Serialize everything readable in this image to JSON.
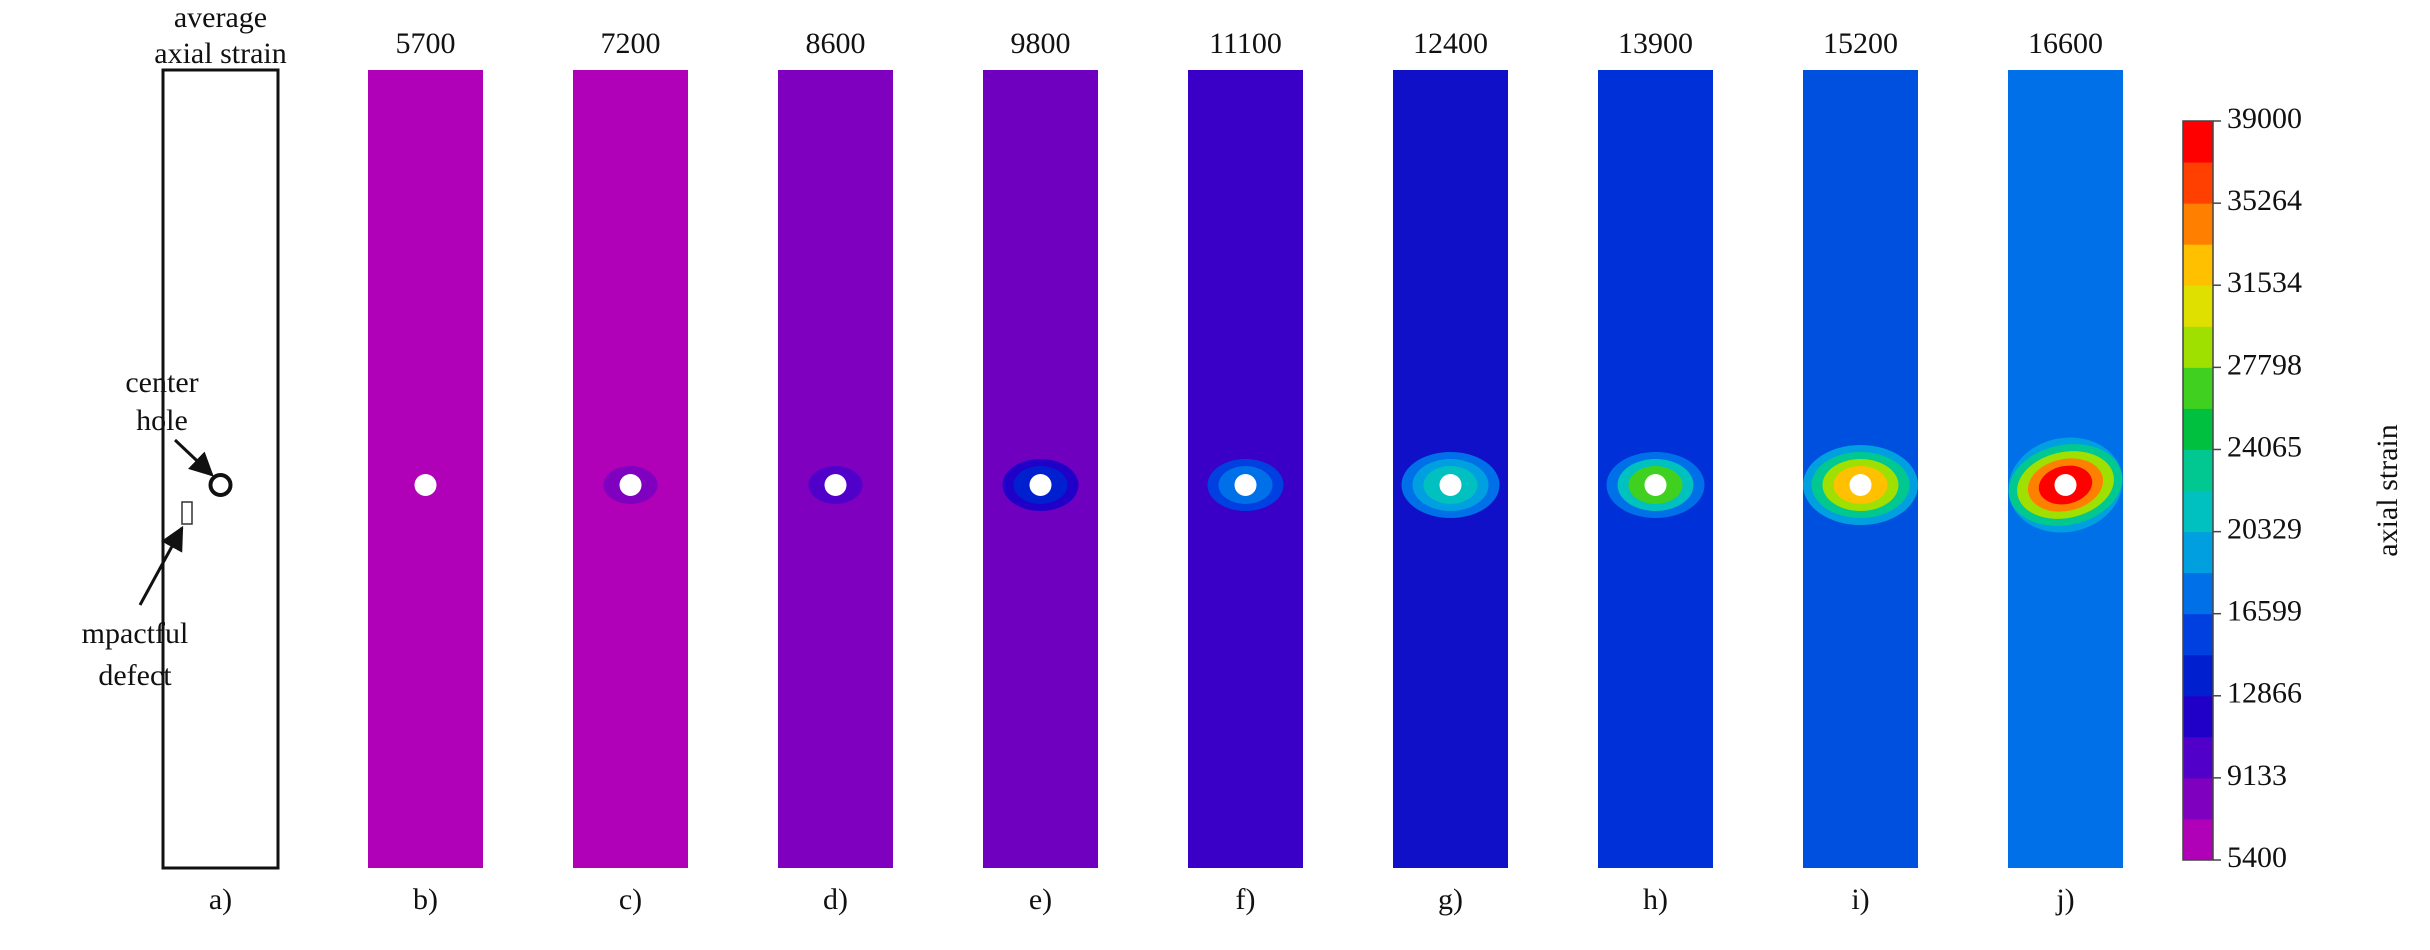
{
  "panels": [
    {
      "header": [
        "average",
        "axial strain"
      ],
      "label": "a)"
    },
    {
      "header": 5700,
      "label": "b)",
      "color": "#b000b8",
      "hotspot": []
    },
    {
      "header": 7200,
      "label": "c)",
      "color": "#b000b8",
      "hotspot": [
        "#8000c0"
      ]
    },
    {
      "header": 8600,
      "label": "d)",
      "color": "#8000c0",
      "hotspot": [
        "#5000c8"
      ]
    },
    {
      "header": 9800,
      "label": "e)",
      "color": "#7000c0",
      "hotspot": [
        "#2000c8",
        "#0020d0"
      ]
    },
    {
      "header": 11100,
      "label": "f)",
      "color": "#3a00c8",
      "hotspot": [
        "#0040e0",
        "#0070e8"
      ]
    },
    {
      "header": 12400,
      "label": "g)",
      "color": "#1010c8",
      "hotspot": [
        "#0070e8",
        "#00a0e0",
        "#00c0c0"
      ]
    },
    {
      "header": 13900,
      "label": "h)",
      "color": "#0030d8",
      "hotspot": [
        "#0070e8",
        "#00c0c0",
        "#40d020"
      ]
    },
    {
      "header": 15200,
      "label": "i)",
      "color": "#0050e0",
      "hotspot": [
        "#00a0e0",
        "#00c890",
        "#a0e000",
        "#ffc000"
      ]
    },
    {
      "header": 16600,
      "label": "j)",
      "color": "#0070e8",
      "hotspot": [
        "#00a0e0",
        "#00c890",
        "#a0e000",
        "#ff8000",
        "#ff0000"
      ]
    }
  ],
  "annotations": {
    "center_hole": [
      "center",
      "hole"
    ],
    "defect": [
      "mpactful",
      "defect"
    ]
  },
  "colorbar": {
    "title": "axial strain",
    "lim": [
      5400,
      39000
    ],
    "ticks": [
      39000,
      35264,
      31534,
      27798,
      24065,
      20329,
      16599,
      12866,
      9133,
      5400
    ],
    "colors": [
      "#b000b8",
      "#8000c0",
      "#5000c8",
      "#2000c8",
      "#0020d0",
      "#0040e0",
      "#0070e8",
      "#00a0e0",
      "#00c0c0",
      "#00c890",
      "#00c040",
      "#40d020",
      "#a0e000",
      "#e0e000",
      "#ffc000",
      "#ff8000",
      "#ff4000",
      "#ff0000"
    ]
  }
}
